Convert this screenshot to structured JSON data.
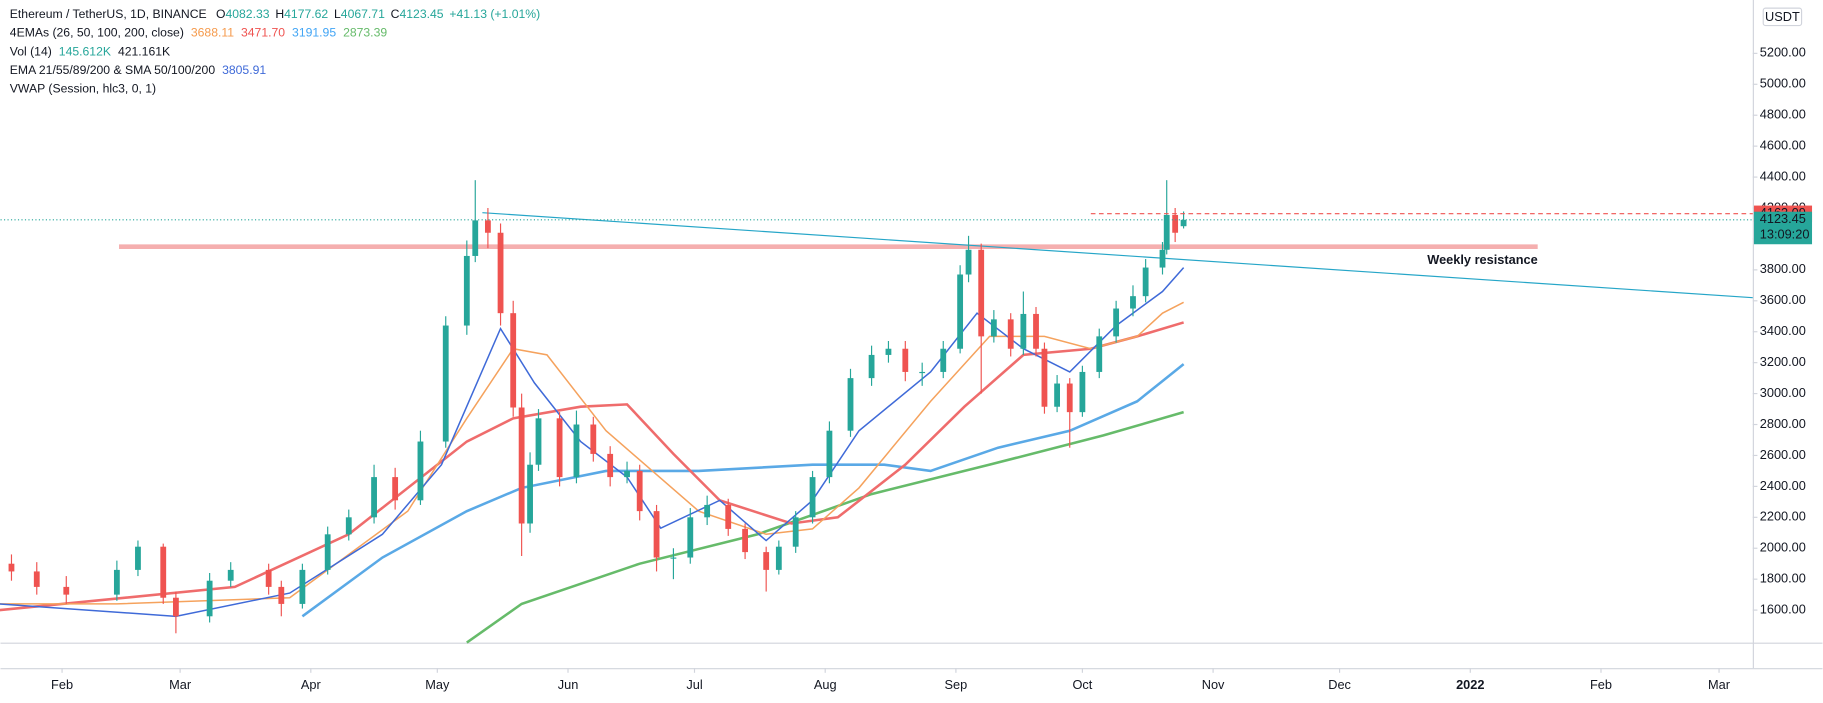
{
  "chart_data": {
    "type": "candlestick",
    "title": "Ethereum / TetherUS, 1D, BINANCE",
    "ohlc_letters": [
      "O",
      "H",
      "L",
      "C"
    ],
    "change": "+41.13 (+1.01%)",
    "indicators": [
      {
        "name": "4EMAs (26, 50, 100, 200, close)",
        "values": [
          3688.11,
          {
            "value": 3471.7,
            "label": "3471.70"
          },
          3191.95,
          2873.39
        ],
        "colors": [
          "#f59a4c",
          "#ef5350",
          "#42a5f5",
          "#66bb6a"
        ]
      },
      {
        "name": "Vol (14)",
        "values": [
          "145.612K",
          "421.161K"
        ],
        "colors": [
          "#26a69a",
          "#131722"
        ]
      },
      {
        "name": "EMA 21/55/89/200 & SMA 50/100/200",
        "values": [
          3805.91
        ],
        "colors": [
          "#3f6ad8"
        ]
      },
      {
        "name": "VWAP (Session, hlc3, 0, 1)",
        "values": [],
        "colors": []
      }
    ],
    "currency": "USDT",
    "xlim": [
      16.4,
      432
    ],
    "ylim": [
      1390,
      5545
    ],
    "grid": false,
    "up_color": "#26a69a",
    "down_color": "#ef5350",
    "xticks": [
      {
        "value": 31,
        "label": "Feb"
      },
      {
        "value": 59,
        "label": "Mar"
      },
      {
        "value": 90,
        "label": "Apr"
      },
      {
        "value": 120,
        "label": "May"
      },
      {
        "value": 151,
        "label": "Jun"
      },
      {
        "value": 181,
        "label": "Jul"
      },
      {
        "value": 212,
        "label": "Aug"
      },
      {
        "value": 243,
        "label": "Sep"
      },
      {
        "value": 273,
        "label": "Oct"
      },
      {
        "value": 304,
        "label": "Nov"
      },
      {
        "value": 334,
        "label": "Dec"
      },
      {
        "value": 365,
        "label": "2022",
        "bold": true
      },
      {
        "value": 396,
        "label": "Feb"
      },
      {
        "value": 424,
        "label": "Mar"
      }
    ],
    "yticks": [
      {
        "value": 1600,
        "label": "1600.00"
      },
      {
        "value": 1800,
        "label": "1800.00"
      },
      {
        "value": 2000,
        "label": "2000.00"
      },
      {
        "value": 2200,
        "label": "2200.00"
      },
      {
        "value": 2400,
        "label": "2400.00"
      },
      {
        "value": 2600,
        "label": "2600.00"
      },
      {
        "value": 2800,
        "label": "2800.00"
      },
      {
        "value": 3000,
        "label": "3000.00"
      },
      {
        "value": 3200,
        "label": "3200.00"
      },
      {
        "value": 3400,
        "label": "3400.00"
      },
      {
        "value": 3600,
        "label": "3600.00"
      },
      {
        "value": 3800,
        "label": "3800.00"
      },
      {
        "value": 4000,
        "label": "4000.00"
      },
      {
        "value": 4200,
        "label": "4200.00"
      },
      {
        "value": 4400,
        "label": "4400.00"
      },
      {
        "value": 4600,
        "label": "4600.00"
      },
      {
        "value": 4800,
        "label": "4800.00"
      },
      {
        "value": 5000,
        "label": "5000.00"
      },
      {
        "value": 5200,
        "label": "5200.00"
      }
    ],
    "candles": {
      "x": [
        19,
        25,
        32,
        44,
        49,
        55,
        58,
        66,
        71,
        80,
        83,
        88,
        94,
        99,
        105,
        110,
        116,
        122,
        127,
        129,
        132,
        135,
        138,
        140,
        142,
        144,
        149,
        153,
        157,
        161,
        165,
        168,
        172,
        176,
        180,
        184,
        189,
        193,
        198,
        201,
        205,
        209,
        213,
        218,
        223,
        227,
        231,
        235,
        240,
        244,
        246,
        249,
        252,
        256,
        259,
        262,
        264,
        267,
        270,
        273,
        277,
        281,
        285,
        288,
        292,
        293,
        295,
        297
      ],
      "open": [
        1900,
        1850,
        1750,
        1700,
        1860,
        2010,
        1680,
        1560,
        1790,
        1860,
        1750,
        1640,
        1860,
        2090,
        2200,
        2460,
        2310,
        2690,
        3440,
        3890,
        4120,
        4040,
        3520,
        2910,
        2160,
        2540,
        2840,
        2460,
        2800,
        2610,
        2460,
        2500,
        2240,
        1940,
        1940,
        2200,
        2280,
        2125,
        1975,
        1860,
        2010,
        2200,
        2460,
        2760,
        3100,
        3250,
        3290,
        3140,
        3140,
        3290,
        3770,
        3930,
        3370,
        3480,
        3290,
        3515,
        3290,
        2915,
        3065,
        2880,
        3140,
        3370,
        3550,
        3630,
        3815,
        3930,
        4155,
        4082.33
      ],
      "high": [
        1960,
        1910,
        1820,
        1920,
        2050,
        2030,
        1720,
        1840,
        1910,
        1900,
        1790,
        1900,
        2140,
        2250,
        2540,
        2520,
        2760,
        3500,
        3990,
        4380,
        4200,
        4100,
        3600,
        3000,
        2620,
        2900,
        2880,
        2890,
        2850,
        2660,
        2560,
        2540,
        2280,
        2000,
        2260,
        2340,
        2320,
        2160,
        2010,
        2050,
        2240,
        2500,
        2820,
        3160,
        3310,
        3340,
        3340,
        3200,
        3340,
        3830,
        4020,
        3970,
        3540,
        3520,
        3660,
        3560,
        3330,
        3120,
        3100,
        3180,
        3420,
        3600,
        3700,
        3870,
        3980,
        4380,
        4200,
        4177.62
      ],
      "low": [
        1790,
        1700,
        1640,
        1660,
        1820,
        1640,
        1450,
        1520,
        1750,
        1700,
        1560,
        1610,
        1830,
        2050,
        2160,
        2250,
        2280,
        2650,
        3380,
        3850,
        3940,
        3440,
        2850,
        1950,
        2100,
        2500,
        2400,
        2420,
        2560,
        2400,
        2420,
        2180,
        1850,
        1800,
        1900,
        2150,
        2080,
        1930,
        1720,
        1830,
        1970,
        2160,
        2420,
        2720,
        3050,
        3200,
        3080,
        3050,
        3100,
        3260,
        3720,
        3000,
        3330,
        3240,
        3250,
        3240,
        2870,
        2880,
        2650,
        2850,
        3100,
        3330,
        3500,
        3590,
        3770,
        3900,
        3980,
        4067.71
      ],
      "close": [
        1850,
        1750,
        1700,
        1860,
        2010,
        1680,
        1560,
        1790,
        1860,
        1750,
        1640,
        1860,
        2090,
        2200,
        2460,
        2310,
        2690,
        3440,
        3890,
        4120,
        4040,
        3520,
        2910,
        2160,
        2540,
        2840,
        2460,
        2800,
        2610,
        2460,
        2500,
        2240,
        1940,
        1940,
        2200,
        2280,
        2125,
        1975,
        1860,
        2010,
        2200,
        2460,
        2760,
        3100,
        3250,
        3290,
        3140,
        3140,
        3290,
        3770,
        3930,
        3370,
        3480,
        3290,
        3515,
        3290,
        2915,
        3065,
        2880,
        3140,
        3370,
        3550,
        3630,
        3815,
        3930,
        4155,
        4040,
        4123.45
      ]
    },
    "lines": [
      {
        "color": "#66bb6a",
        "x": [
          127,
          140,
          168,
          196,
          223,
          251,
          278,
          297
        ],
        "values": [
          1390,
          1640,
          1900,
          2090,
          2350,
          2540,
          2730,
          2880
        ]
      },
      {
        "color": "#5aa9e6",
        "x": [
          88,
          107,
          127,
          140,
          160,
          182,
          209,
          226,
          237,
          253,
          270,
          286,
          297
        ],
        "values": [
          1560,
          1940,
          2240,
          2390,
          2500,
          2500,
          2540,
          2540,
          2500,
          2650,
          2760,
          2950,
          3190
        ]
      },
      {
        "color": "#ef6c6c",
        "x": [
          16,
          72,
          99,
          127,
          138,
          154,
          165,
          176,
          187,
          204,
          215,
          231,
          245,
          259,
          275,
          286,
          297
        ],
        "values": [
          1600,
          1750,
          2090,
          2690,
          2840,
          2915,
          2930,
          2610,
          2310,
          2160,
          2200,
          2540,
          2915,
          3250,
          3290,
          3370,
          3460
        ]
      },
      {
        "color": "#f5a25d",
        "x": [
          16,
          44,
          85,
          113,
          127,
          138,
          146,
          160,
          182,
          198,
          209,
          220,
          237,
          251,
          264,
          275,
          286,
          292,
          297
        ],
        "values": [
          1640,
          1640,
          1680,
          2240,
          2840,
          3290,
          3250,
          2760,
          2240,
          2090,
          2125,
          2390,
          2950,
          3370,
          3370,
          3290,
          3370,
          3520,
          3590
        ]
      },
      {
        "color": "#3f6ad8",
        "x": [
          16,
          58,
          85,
          107,
          121,
          135,
          143,
          154,
          165,
          173,
          187,
          198,
          209,
          220,
          237,
          248,
          259,
          270,
          281,
          292,
          297
        ],
        "values": [
          1640,
          1560,
          1710,
          2090,
          2540,
          3420,
          3070,
          2690,
          2460,
          2130,
          2310,
          2050,
          2310,
          2760,
          3140,
          3520,
          3290,
          3140,
          3440,
          3660,
          3815
        ]
      }
    ],
    "trendline": {
      "color": "#26a6c8",
      "x": [
        130.7,
        432
      ],
      "values": [
        4170,
        3620
      ]
    },
    "resistance": {
      "color": "#f4a6a6",
      "x": [
        44.5,
        381
      ],
      "values": [
        3950,
        3950
      ],
      "label": "Weekly resistance"
    },
    "levels": [
      {
        "value": 4163.09,
        "color": "#ef5350",
        "x_from": 275
      },
      {
        "value": 4123.45,
        "color": "#26a69a",
        "x_from": 16.4,
        "countdown": "13:09:20"
      }
    ]
  }
}
